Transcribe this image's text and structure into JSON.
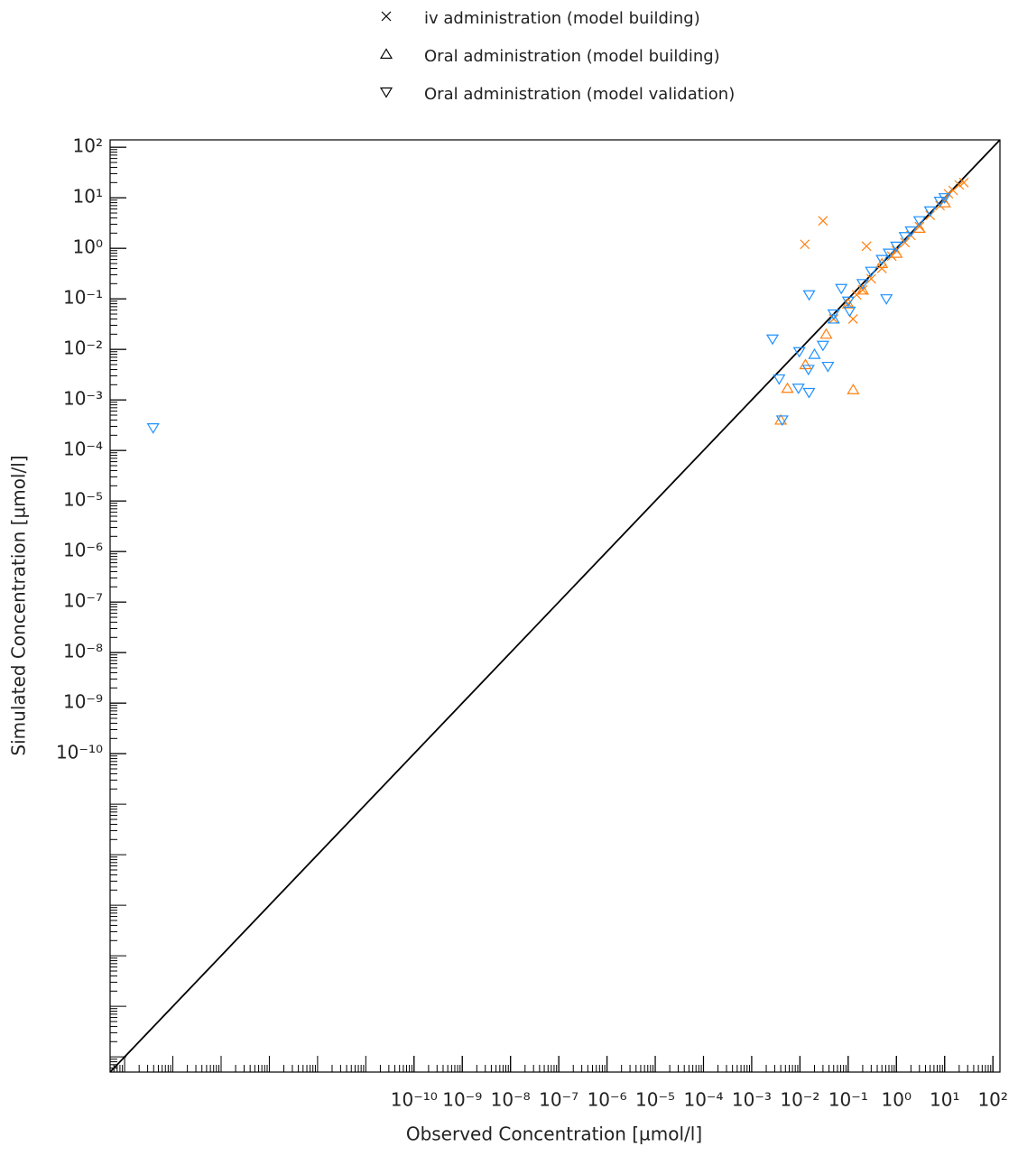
{
  "chart_data": {
    "type": "scatter",
    "x_label": "Observed Concentration [µmol/l]",
    "y_label": "Simulated Concentration [µmol/l]",
    "xlim": [
      5e-17,
      140
    ],
    "ylim": [
      5e-17,
      140
    ],
    "log_x": true,
    "log_y": true,
    "identity_line": true,
    "legend": "top",
    "xticks": [
      {
        "value": 1e-10,
        "label": "10⁻¹⁰"
      },
      {
        "value": 1e-09,
        "label": "10⁻⁹"
      },
      {
        "value": 1e-08,
        "label": "10⁻⁸"
      },
      {
        "value": 1e-07,
        "label": "10⁻⁷"
      },
      {
        "value": 1e-06,
        "label": "10⁻⁶"
      },
      {
        "value": 1e-05,
        "label": "10⁻⁵"
      },
      {
        "value": 0.0001,
        "label": "10⁻⁴"
      },
      {
        "value": 0.001,
        "label": "10⁻³"
      },
      {
        "value": 0.01,
        "label": "10⁻²"
      },
      {
        "value": 0.1,
        "label": "10⁻¹"
      },
      {
        "value": 1,
        "label": "10⁰"
      },
      {
        "value": 10,
        "label": "10¹"
      },
      {
        "value": 100,
        "label": "10²"
      }
    ],
    "yticks": [
      {
        "value": 1e-10,
        "label": "10⁻¹⁰"
      },
      {
        "value": 1e-09,
        "label": "10⁻⁹"
      },
      {
        "value": 1e-08,
        "label": "10⁻⁸"
      },
      {
        "value": 1e-07,
        "label": "10⁻⁷"
      },
      {
        "value": 1e-06,
        "label": "10⁻⁶"
      },
      {
        "value": 1e-05,
        "label": "10⁻⁵"
      },
      {
        "value": 0.0001,
        "label": "10⁻⁴"
      },
      {
        "value": 0.001,
        "label": "10⁻³"
      },
      {
        "value": 0.01,
        "label": "10⁻²"
      },
      {
        "value": 0.1,
        "label": "10⁻¹"
      },
      {
        "value": 1,
        "label": "10⁰"
      },
      {
        "value": 10,
        "label": "10¹"
      },
      {
        "value": 100,
        "label": "10²"
      }
    ],
    "series": [
      {
        "name": "iv administration (model building)",
        "marker": "x",
        "groups": [
          {
            "color": "#ff7f0e",
            "x": [
              0.0126,
              0.03,
              0.24,
              0.126,
              0.05,
              0.1,
              0.15,
              0.2,
              0.3,
              0.5,
              0.8,
              1,
              1.5,
              2,
              3,
              5,
              8,
              10,
              12,
              15,
              20,
              25
            ],
            "y": [
              1.2,
              3.5,
              1.1,
              0.04,
              0.04,
              0.08,
              0.12,
              0.15,
              0.25,
              0.4,
              0.7,
              0.9,
              1.3,
              1.8,
              2.7,
              4.5,
              7,
              9,
              12,
              14,
              18,
              20
            ]
          }
        ]
      },
      {
        "name": "Oral administration (model building)",
        "marker": "triangle-up",
        "groups": [
          {
            "color": "#ff7f0e",
            "x": [
              0.0055,
              0.127,
              0.013,
              0.004,
              0.035,
              0.1,
              0.2,
              0.5,
              1,
              3,
              10
            ],
            "y": [
              0.0017,
              0.0016,
              0.005,
              0.0004,
              0.02,
              0.08,
              0.15,
              0.5,
              0.8,
              2.5,
              8
            ]
          },
          {
            "color": "#1e90ff",
            "x": [
              0.02,
              0.05
            ],
            "y": [
              0.008,
              0.04
            ]
          }
        ]
      },
      {
        "name": "Oral administration (model validation)",
        "marker": "triangle-down",
        "groups": [
          {
            "color": "#1e90ff",
            "x": [
              3.9e-16,
              0.0027,
              0.0037,
              0.0043,
              0.0155,
              0.015,
              0.0097,
              0.0093,
              0.0154,
              0.038,
              0.03,
              0.62,
              0.107,
              0.072,
              0.05,
              0.1,
              0.2,
              0.3,
              0.5,
              0.7,
              1,
              1.5,
              2,
              3,
              5,
              8,
              10
            ],
            "y": [
              0.00028,
              0.016,
              0.0026,
              0.0004,
              0.12,
              0.004,
              0.009,
              0.0017,
              0.0014,
              0.0046,
              0.012,
              0.1,
              0.057,
              0.16,
              0.05,
              0.09,
              0.2,
              0.35,
              0.6,
              0.8,
              1.1,
              1.7,
              2.2,
              3.5,
              5.5,
              8.5,
              10
            ]
          }
        ]
      }
    ]
  }
}
